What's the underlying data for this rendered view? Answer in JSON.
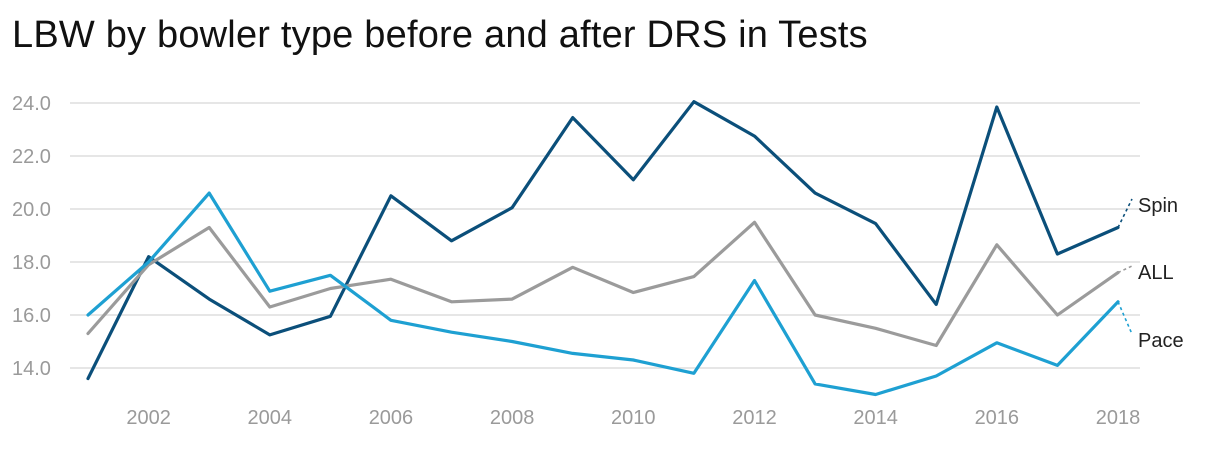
{
  "chart_data": {
    "type": "line",
    "title": "LBW by bowler type before and after DRS in Tests",
    "xlabel": "",
    "ylabel": "",
    "x": [
      2001,
      2002,
      2003,
      2004,
      2005,
      2006,
      2007,
      2008,
      2009,
      2010,
      2011,
      2012,
      2013,
      2014,
      2015,
      2016,
      2017,
      2018
    ],
    "x_ticks": [
      "2002",
      "2004",
      "2006",
      "2008",
      "2010",
      "2012",
      "2014",
      "2016",
      "2018"
    ],
    "y_ticks": [
      "14.0",
      "16.0",
      "18.0",
      "20.0",
      "22.0",
      "24.0"
    ],
    "xlim": [
      2001,
      2018
    ],
    "ylim": [
      13.0,
      24.6
    ],
    "grid": true,
    "legend": "direct labels at right end of lines",
    "series": [
      {
        "name": "Spin",
        "color": "#0b4f7a",
        "values": [
          13.6,
          18.2,
          16.6,
          15.25,
          15.95,
          20.5,
          18.8,
          20.05,
          23.45,
          21.1,
          24.05,
          22.75,
          20.6,
          19.45,
          16.4,
          23.85,
          18.3,
          19.3
        ]
      },
      {
        "name": "ALL",
        "color": "#9b9b9b",
        "values": [
          15.3,
          17.9,
          19.3,
          16.3,
          17.0,
          17.35,
          16.5,
          16.6,
          17.8,
          16.85,
          17.45,
          19.5,
          16.0,
          15.5,
          14.85,
          18.65,
          16.0,
          17.6
        ]
      },
      {
        "name": "Pace",
        "color": "#1ea0d2",
        "values": [
          16.0,
          18.0,
          20.6,
          16.9,
          17.5,
          15.8,
          15.35,
          15.0,
          14.55,
          14.3,
          13.8,
          17.3,
          13.4,
          13.0,
          13.7,
          14.95,
          14.1,
          16.5
        ]
      }
    ]
  }
}
